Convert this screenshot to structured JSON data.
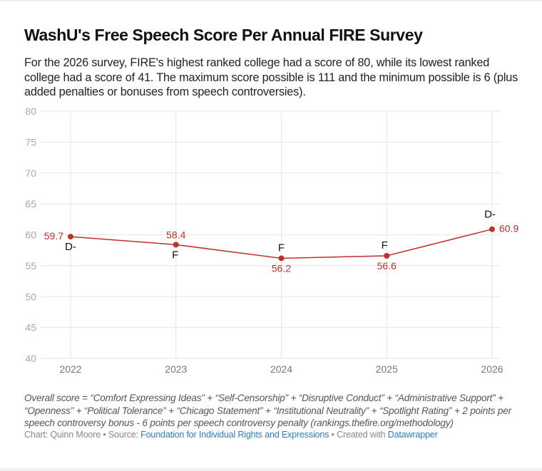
{
  "header": {
    "title": "WashU's Free Speech Score Per Annual FIRE Survey",
    "subtitle": "For the 2026 survey, FIRE's highest ranked college had a score of 80, while its lowest ranked college had a score of 41. The maximum score possible is 111 and the minimum possible is 6 (plus added penalties or bonuses from speech controversies)."
  },
  "chart_data": {
    "type": "line",
    "title": "WashU's Free Speech Score Per Annual FIRE Survey",
    "xlabel": "",
    "ylabel": "",
    "x": [
      "2022",
      "2023",
      "2024",
      "2025",
      "2026"
    ],
    "series": [
      {
        "name": "Overall score",
        "values": [
          59.7,
          58.4,
          56.2,
          56.6,
          60.9
        ],
        "value_labels": [
          "59.7",
          "58.4",
          "56.2",
          "56.6",
          "60.9"
        ],
        "grades": [
          "D-",
          "F",
          "F",
          "F",
          "D-"
        ],
        "color": "#c0302a"
      }
    ],
    "ylim": [
      40,
      80
    ],
    "yticks": [
      "40",
      "45",
      "50",
      "55",
      "60",
      "65",
      "70",
      "75",
      "80"
    ],
    "grid": true,
    "legend": "none"
  },
  "footer": {
    "notes": "Overall score = “Comfort Expressing Ideas” + “Self-Censorship” + “Disruptive Conduct” + “Administrative Support” + “Openness” + “Political Tolerance” + “Chicago Statement” + “Institutional Neutrality” + “Spotlight Rating” + 2 points per speech controversy bonus - 6 points per speech controversy penalty (rankings.thefire.org/methodology)",
    "chart_credit": "Chart: Quinn Moore",
    "separator": " • ",
    "source_label": "Source: ",
    "source_link": "Foundation for Individual Rights and Expressions",
    "created_label": "Created with ",
    "created_link": "Datawrapper"
  }
}
